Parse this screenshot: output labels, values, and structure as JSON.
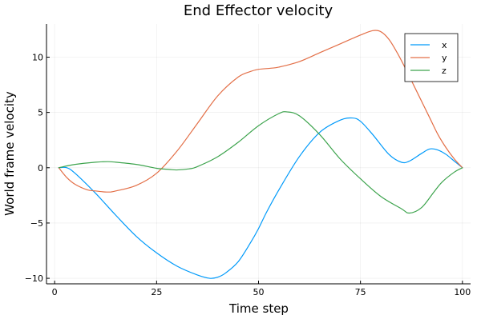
{
  "chart_data": {
    "type": "line",
    "title": "End Effector velocity",
    "xlabel": "Time step",
    "ylabel": "World frame velocity",
    "xlim": [
      -2,
      102
    ],
    "ylim": [
      -10.5,
      13
    ],
    "xticks": [
      0,
      25,
      50,
      75,
      100
    ],
    "yticks": [
      -10,
      -5,
      0,
      5,
      10
    ],
    "xtick_labels": [
      "0",
      "25",
      "50",
      "75",
      "100"
    ],
    "ytick_labels": [
      "−10",
      "−5",
      "0",
      "5",
      "10"
    ],
    "grid": true,
    "legend": "top-right",
    "series": [
      {
        "name": "x",
        "color": "#009AFA",
        "x": [
          1,
          3,
          5,
          10,
          15,
          20,
          25,
          30,
          35,
          38,
          40,
          42,
          45,
          48,
          50,
          52,
          55,
          60,
          65,
          70,
          73,
          75,
          78,
          82,
          85,
          87,
          90,
          92,
          94,
          96,
          98,
          100
        ],
        "y": [
          0,
          0,
          -0.5,
          -2.3,
          -4.3,
          -6.2,
          -7.7,
          -8.9,
          -9.7,
          -10,
          -9.9,
          -9.5,
          -8.5,
          -6.8,
          -5.5,
          -4,
          -2,
          1,
          3.2,
          4.3,
          4.5,
          4.2,
          3,
          1.2,
          0.5,
          0.6,
          1.3,
          1.7,
          1.6,
          1.2,
          0.6,
          0
        ]
      },
      {
        "name": "y",
        "color": "#E36F47",
        "x": [
          1,
          3,
          5,
          8,
          10,
          13,
          15,
          20,
          25,
          30,
          35,
          40,
          45,
          48,
          50,
          53,
          55,
          60,
          65,
          70,
          75,
          78,
          80,
          82,
          84,
          86,
          88,
          90,
          92,
          94,
          96,
          98,
          100
        ],
        "y": [
          0,
          -0.9,
          -1.5,
          -2,
          -2.1,
          -2.2,
          -2.1,
          -1.6,
          -0.5,
          1.5,
          4,
          6.5,
          8.2,
          8.7,
          8.9,
          9,
          9.1,
          9.6,
          10.4,
          11.2,
          12,
          12.4,
          12.3,
          11.6,
          10.4,
          9,
          7.5,
          6,
          4.5,
          3,
          1.8,
          0.8,
          0
        ]
      },
      {
        "name": "z",
        "color": "#3EA44E",
        "x": [
          1,
          5,
          10,
          13,
          15,
          20,
          25,
          28,
          30,
          33,
          35,
          40,
          45,
          50,
          55,
          57,
          60,
          65,
          70,
          75,
          80,
          85,
          87,
          90,
          93,
          95,
          98,
          100
        ],
        "y": [
          0,
          0.3,
          0.5,
          0.55,
          0.5,
          0.3,
          -0.05,
          -0.15,
          -0.2,
          -0.1,
          0.1,
          1,
          2.3,
          3.8,
          4.9,
          5.05,
          4.7,
          3,
          0.8,
          -1,
          -2.6,
          -3.7,
          -4.1,
          -3.6,
          -2.2,
          -1.3,
          -0.4,
          0
        ]
      }
    ]
  }
}
